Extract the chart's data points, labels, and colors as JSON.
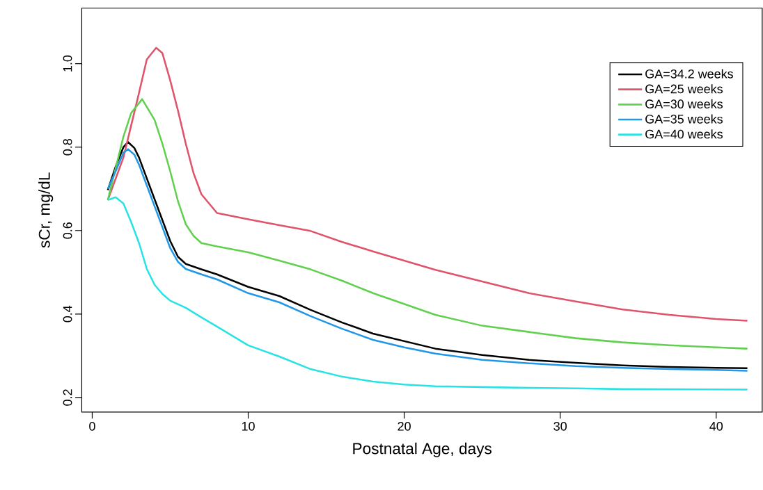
{
  "chart_data": {
    "type": "line",
    "xlabel": "Postnatal Age, days",
    "ylabel": "sCr, mg/dL",
    "xlim": [
      -0.67,
      42.95
    ],
    "ylim": [
      0.165,
      1.133
    ],
    "xticks": [
      0,
      10,
      20,
      30,
      40
    ],
    "yticks": [
      0.2,
      0.4,
      0.6,
      0.8,
      {
        "value": 1,
        "label": "1.0"
      }
    ],
    "grid": false,
    "legend": "top right",
    "marker": "none",
    "line_style": "solid",
    "series": [
      {
        "name": "GA=34.2 weeks",
        "color": "#000000",
        "x": [
          1,
          1.5,
          2,
          2.3,
          2.7,
          3,
          3.5,
          4,
          4.5,
          5,
          5.5,
          6,
          7,
          8,
          10,
          12,
          14,
          16,
          18,
          20,
          22,
          25,
          28,
          31,
          34,
          37,
          40,
          42
        ],
        "values": [
          0.697,
          0.753,
          0.8,
          0.812,
          0.798,
          0.775,
          0.725,
          0.675,
          0.625,
          0.575,
          0.537,
          0.52,
          0.507,
          0.495,
          0.465,
          0.443,
          0.41,
          0.38,
          0.353,
          0.335,
          0.317,
          0.302,
          0.29,
          0.283,
          0.277,
          0.273,
          0.271,
          0.27
        ]
      },
      {
        "name": "GA=25 weeks",
        "color": "#df536b",
        "x": [
          1,
          2,
          3,
          3.5,
          4.1,
          4.5,
          5,
          5.5,
          6,
          6.5,
          7,
          8,
          10,
          12,
          14,
          16,
          18,
          20,
          22,
          25,
          28,
          31,
          34,
          37,
          40,
          42
        ],
        "values": [
          0.673,
          0.775,
          0.93,
          1.01,
          1.038,
          1.025,
          0.96,
          0.887,
          0.808,
          0.737,
          0.687,
          0.642,
          0.627,
          0.613,
          0.599,
          0.573,
          0.55,
          0.528,
          0.506,
          0.478,
          0.45,
          0.43,
          0.411,
          0.398,
          0.388,
          0.384
        ]
      },
      {
        "name": "GA=30 weeks",
        "color": "#61d04f",
        "x": [
          1,
          2,
          2.5,
          3.2,
          4,
          4.5,
          5,
          5.5,
          6,
          6.5,
          7,
          8,
          10,
          12,
          14,
          16,
          18,
          20,
          22,
          25,
          28,
          31,
          34,
          37,
          40,
          42
        ],
        "values": [
          0.673,
          0.825,
          0.882,
          0.915,
          0.865,
          0.808,
          0.742,
          0.67,
          0.615,
          0.587,
          0.57,
          0.562,
          0.548,
          0.528,
          0.507,
          0.48,
          0.45,
          0.424,
          0.398,
          0.372,
          0.357,
          0.342,
          0.332,
          0.325,
          0.32,
          0.317
        ]
      },
      {
        "name": "GA=35 weeks",
        "color": "#2297e6",
        "x": [
          1,
          1.5,
          2,
          2.3,
          2.7,
          3,
          3.5,
          4,
          4.5,
          5,
          5.5,
          6,
          7,
          8,
          10,
          12,
          14,
          16,
          18,
          20,
          22,
          25,
          28,
          31,
          34,
          37,
          40,
          42
        ],
        "values": [
          0.7,
          0.742,
          0.787,
          0.795,
          0.782,
          0.758,
          0.708,
          0.658,
          0.608,
          0.558,
          0.525,
          0.508,
          0.495,
          0.483,
          0.45,
          0.428,
          0.395,
          0.365,
          0.338,
          0.32,
          0.305,
          0.29,
          0.282,
          0.275,
          0.271,
          0.268,
          0.266,
          0.264
        ]
      },
      {
        "name": "GA=40 weeks",
        "color": "#28e2e5",
        "x": [
          1,
          1.5,
          2,
          2.5,
          3,
          3.5,
          4,
          4.5,
          5,
          6,
          7,
          8,
          10,
          12,
          14,
          16,
          18,
          20,
          22,
          25,
          28,
          31,
          34,
          42
        ],
        "values": [
          0.673,
          0.68,
          0.665,
          0.62,
          0.57,
          0.508,
          0.47,
          0.448,
          0.432,
          0.415,
          0.392,
          0.37,
          0.325,
          0.298,
          0.268,
          0.25,
          0.238,
          0.231,
          0.227,
          0.225,
          0.223,
          0.222,
          0.22,
          0.219
        ]
      }
    ]
  }
}
